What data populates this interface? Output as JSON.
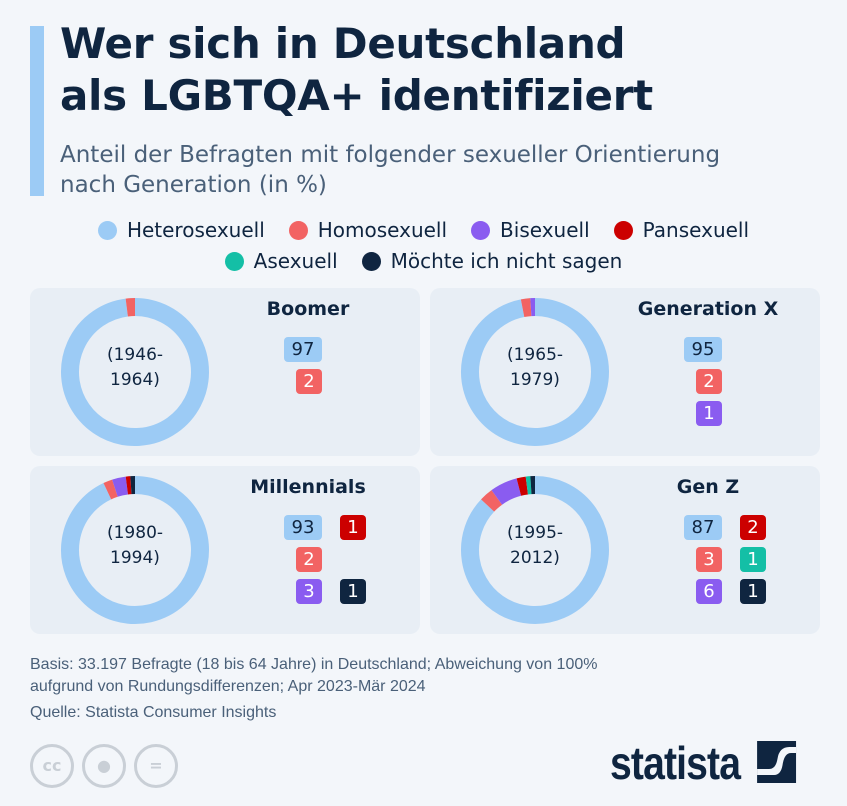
{
  "title_line1": "Wer sich in Deutschland",
  "title_line2": "als LGBTQA+ identifiziert",
  "subtitle_line1": "Anteil der Befragten mit folgender sexueller Orientierung",
  "subtitle_line2": "nach Generation (in %)",
  "legend": [
    {
      "label": "Heterosexuell",
      "color": "#9ccbf5"
    },
    {
      "label": "Homosexuell",
      "color": "#f26363"
    },
    {
      "label": "Bisexuell",
      "color": "#8a5cf0"
    },
    {
      "label": "Pansexuell",
      "color": "#cc0000"
    },
    {
      "label": "Asexuell",
      "color": "#14bfa6"
    },
    {
      "label": "Möchte ich nicht sagen",
      "color": "#0f2540"
    }
  ],
  "chart_data": {
    "type": "pie",
    "variant": "donut",
    "unit": "%",
    "categories": [
      "Heterosexuell",
      "Homosexuell",
      "Bisexuell",
      "Pansexuell",
      "Asexuell",
      "Möchte ich nicht sagen"
    ],
    "series": [
      {
        "name": "Boomer",
        "years": "(1946-\n1964)",
        "values": [
          97,
          2,
          null,
          null,
          null,
          null
        ]
      },
      {
        "name": "Generation X",
        "years": "(1965-\n1979)",
        "values": [
          95,
          2,
          1,
          null,
          null,
          null
        ]
      },
      {
        "name": "Millennials",
        "years": "(1980-\n1994)",
        "values": [
          93,
          2,
          3,
          1,
          null,
          1
        ]
      },
      {
        "name": "Gen Z",
        "years": "(1995-\n2012)",
        "values": [
          87,
          3,
          6,
          2,
          1,
          1
        ]
      }
    ]
  },
  "footer": {
    "basis_line1": "Basis: 33.197 Befragte (18 bis 64 Jahre) in Deutschland; Abweichung von 100%",
    "basis_line2": "aufgrund von Rundungsdifferenzen; Apr 2023-Mär 2024",
    "source": "Quelle: Statista Consumer Insights",
    "logo": "statista",
    "license_icons": [
      "cc-icon",
      "by-icon",
      "nd-icon"
    ]
  }
}
